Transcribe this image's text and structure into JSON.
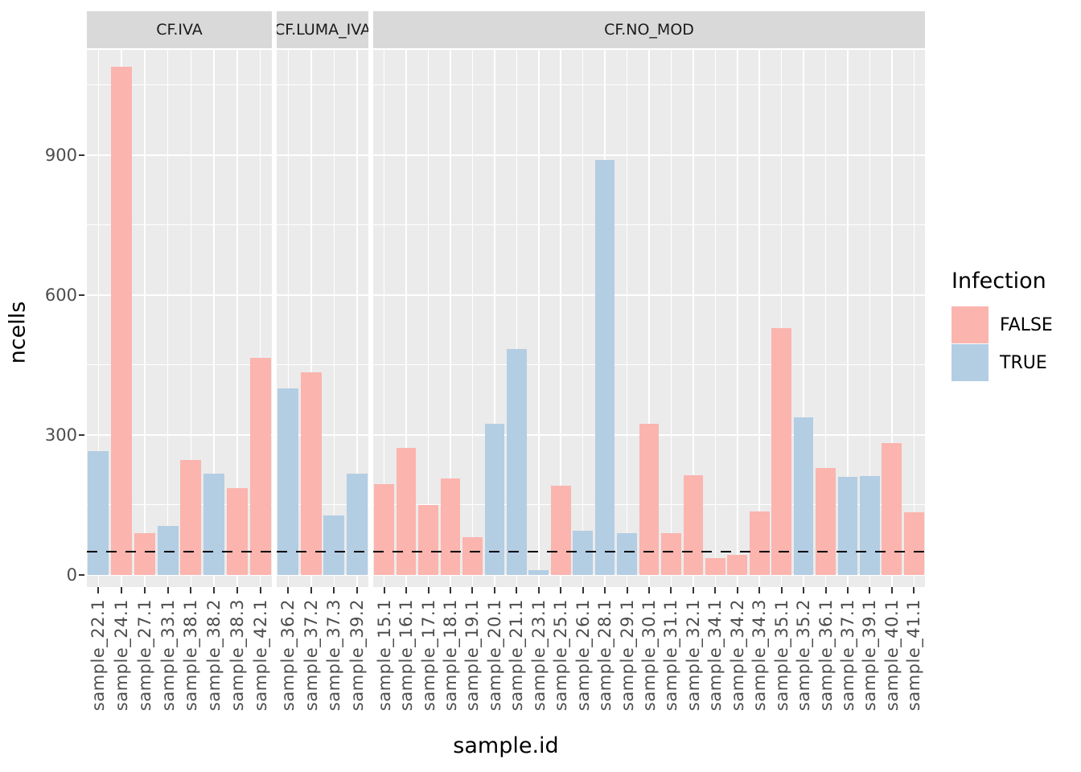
{
  "chart_data": {
    "type": "bar",
    "xlabel": "sample.id",
    "ylabel": "ncells",
    "y_ticks": [
      0,
      300,
      600,
      900
    ],
    "ylim": [
      0,
      1125
    ],
    "grid": {
      "major": [
        0,
        300,
        600,
        900
      ],
      "minor": [
        150,
        450,
        750,
        1050
      ],
      "color": "#FFFFFF"
    },
    "hline": {
      "value": 50,
      "style": "dashed",
      "color": "#000000"
    },
    "legend": {
      "title": "Infection",
      "position": "right",
      "entries": [
        {
          "label": "FALSE",
          "color": "#FBB4AE"
        },
        {
          "label": "TRUE",
          "color": "#B3CDE3"
        }
      ]
    },
    "colors": {
      "panel_bg": "#EBEBEB",
      "strip_bg": "#D9D9D9",
      "axis_text": "#4D4D4D",
      "strip_text": "#1A1A1A"
    },
    "facets": [
      {
        "label": "CF.IVA",
        "visible_label": "CF.IVA",
        "bars": [
          {
            "x": "sample_22.1",
            "infection": "TRUE",
            "ncells": 265
          },
          {
            "x": "sample_24.1",
            "infection": "FALSE",
            "ncells": 1090
          },
          {
            "x": "sample_27.1",
            "infection": "FALSE",
            "ncells": 90
          },
          {
            "x": "sample_33.1",
            "infection": "TRUE",
            "ncells": 105
          },
          {
            "x": "sample_38.1",
            "infection": "FALSE",
            "ncells": 247
          },
          {
            "x": "sample_38.2",
            "infection": "TRUE",
            "ncells": 218
          },
          {
            "x": "sample_38.3",
            "infection": "FALSE",
            "ncells": 187
          },
          {
            "x": "sample_42.1",
            "infection": "FALSE",
            "ncells": 465
          }
        ]
      },
      {
        "label": "CF.LUMA_IVA",
        "visible_label": "F.LUMA_IV",
        "bars": [
          {
            "x": "sample_36.2",
            "infection": "TRUE",
            "ncells": 400
          },
          {
            "x": "sample_37.2",
            "infection": "FALSE",
            "ncells": 435
          },
          {
            "x": "sample_37.3",
            "infection": "TRUE",
            "ncells": 128
          },
          {
            "x": "sample_39.2",
            "infection": "TRUE",
            "ncells": 217
          }
        ]
      },
      {
        "label": "CF.NO_MOD",
        "visible_label": "CF.NO_MOD",
        "bars": [
          {
            "x": "sample_15.1",
            "infection": "FALSE",
            "ncells": 195
          },
          {
            "x": "sample_16.1",
            "infection": "FALSE",
            "ncells": 272
          },
          {
            "x": "sample_17.1",
            "infection": "FALSE",
            "ncells": 150
          },
          {
            "x": "sample_18.1",
            "infection": "FALSE",
            "ncells": 207
          },
          {
            "x": "sample_19.1",
            "infection": "FALSE",
            "ncells": 81
          },
          {
            "x": "sample_20.1",
            "infection": "TRUE",
            "ncells": 325
          },
          {
            "x": "sample_21.1",
            "infection": "TRUE",
            "ncells": 485
          },
          {
            "x": "sample_23.1",
            "infection": "TRUE",
            "ncells": 10
          },
          {
            "x": "sample_25.1",
            "infection": "FALSE",
            "ncells": 191
          },
          {
            "x": "sample_26.1",
            "infection": "TRUE",
            "ncells": 95
          },
          {
            "x": "sample_28.1",
            "infection": "TRUE",
            "ncells": 890
          },
          {
            "x": "sample_29.1",
            "infection": "TRUE",
            "ncells": 90
          },
          {
            "x": "sample_30.1",
            "infection": "FALSE",
            "ncells": 325
          },
          {
            "x": "sample_31.1",
            "infection": "FALSE",
            "ncells": 90
          },
          {
            "x": "sample_32.1",
            "infection": "FALSE",
            "ncells": 214
          },
          {
            "x": "sample_34.1",
            "infection": "FALSE",
            "ncells": 36
          },
          {
            "x": "sample_34.2",
            "infection": "FALSE",
            "ncells": 43
          },
          {
            "x": "sample_34.3",
            "infection": "FALSE",
            "ncells": 136
          },
          {
            "x": "sample_35.1",
            "infection": "FALSE",
            "ncells": 530
          },
          {
            "x": "sample_35.2",
            "infection": "TRUE",
            "ncells": 338
          },
          {
            "x": "sample_36.1",
            "infection": "FALSE",
            "ncells": 229
          },
          {
            "x": "sample_37.1",
            "infection": "TRUE",
            "ncells": 210
          },
          {
            "x": "sample_39.1",
            "infection": "TRUE",
            "ncells": 212
          },
          {
            "x": "sample_40.1",
            "infection": "FALSE",
            "ncells": 283
          },
          {
            "x": "sample_41.1",
            "infection": "FALSE",
            "ncells": 134
          }
        ]
      }
    ]
  }
}
